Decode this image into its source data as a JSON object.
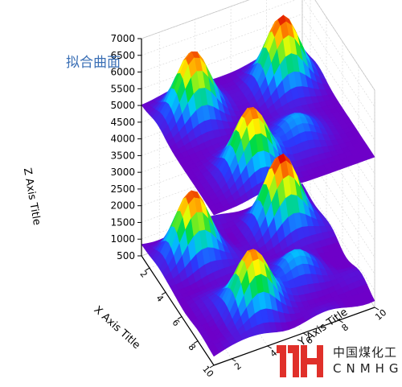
{
  "chart_data": {
    "type": "surface-3d",
    "title": "拟合曲面",
    "xlabel": "X Axis Title",
    "ylabel": "Y Axis Title",
    "zlabel": "Z Axis Title",
    "x_ticks": [
      "2",
      "4",
      "6",
      "8",
      "10"
    ],
    "y_ticks": [
      "2",
      "4",
      "6",
      "8",
      "10"
    ],
    "z_ticks": [
      "500",
      "1000",
      "1500",
      "2000",
      "2500",
      "3000",
      "3500",
      "4000",
      "4500",
      "5000",
      "5500",
      "6000",
      "6500",
      "7000"
    ],
    "xlim": [
      1,
      10
    ],
    "ylim": [
      1,
      10
    ],
    "zlim": [
      500,
      7000
    ],
    "grid": true,
    "colormap": "rainbow",
    "surfaces": [
      {
        "kind": "fitted",
        "base": 5000,
        "peaks": [
          {
            "x": 3,
            "y": 3,
            "height": 1950
          },
          {
            "x": 3,
            "y": 8,
            "height": 2050
          },
          {
            "x": 8,
            "y": 4,
            "height": 1900
          },
          {
            "x": 7,
            "y": 7,
            "height": 700
          }
        ]
      },
      {
        "kind": "raw",
        "base": 800,
        "peaks": [
          {
            "x": 3,
            "y": 3,
            "height": 1900
          },
          {
            "x": 3,
            "y": 8,
            "height": 2050
          },
          {
            "x": 8,
            "y": 4,
            "height": 1800
          },
          {
            "x": 7,
            "y": 7,
            "height": 700
          }
        ]
      }
    ]
  },
  "logo": {
    "mark": "MH",
    "chinese": "中国煤化工",
    "english": "CNMHG",
    "color": "#e0302a"
  }
}
